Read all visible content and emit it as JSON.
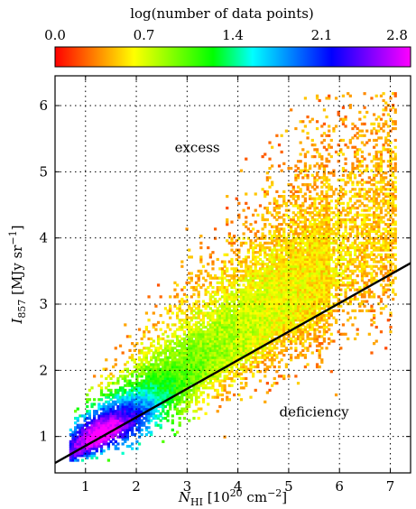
{
  "chart_data": {
    "type": "heatmap",
    "colorbar": {
      "label": "log(number of data points)",
      "ticks": [
        "0.0",
        "0.7",
        "1.4",
        "2.1",
        "2.8"
      ],
      "range": [
        0.0,
        2.8
      ],
      "colors": [
        "#ff0000",
        "#ff8000",
        "#ffff00",
        "#80ff00",
        "#00ff00",
        "#00ffff",
        "#0080ff",
        "#0000ff",
        "#8000ff",
        "#ff00ff"
      ]
    },
    "xlabel": {
      "symbol": "N",
      "sub": "HI",
      "unit_prefix": " [10",
      "sup": "20",
      "unit_mid": " cm",
      "unit_sup": "−2",
      "unit_suffix": "]"
    },
    "ylabel": {
      "symbol": "I",
      "sub": "857",
      "unit_prefix": " [MJy sr",
      "unit_sup": "−1",
      "unit_suffix": "]"
    },
    "xlim": [
      0.4,
      7.4
    ],
    "ylim": [
      0.45,
      6.45
    ],
    "xticks": [
      1,
      2,
      3,
      4,
      5,
      6,
      7
    ],
    "yticks": [
      1,
      2,
      3,
      4,
      5,
      6
    ],
    "grid": true,
    "annotations": [
      {
        "text": "excess",
        "x": 3.2,
        "y": 5.3
      },
      {
        "text": "deficiency",
        "x": 5.5,
        "y": 1.3
      }
    ],
    "fit_line": {
      "x": [
        0.4,
        7.4
      ],
      "y": [
        0.6,
        3.62
      ]
    },
    "density_model": {
      "ridge_slope": 0.36,
      "ridge_intercept": 0.45,
      "peak": {
        "x": 1.6,
        "y": 1.02
      },
      "x_range": [
        0.68,
        7.1
      ],
      "y_range": [
        0.62,
        6.2
      ]
    }
  }
}
